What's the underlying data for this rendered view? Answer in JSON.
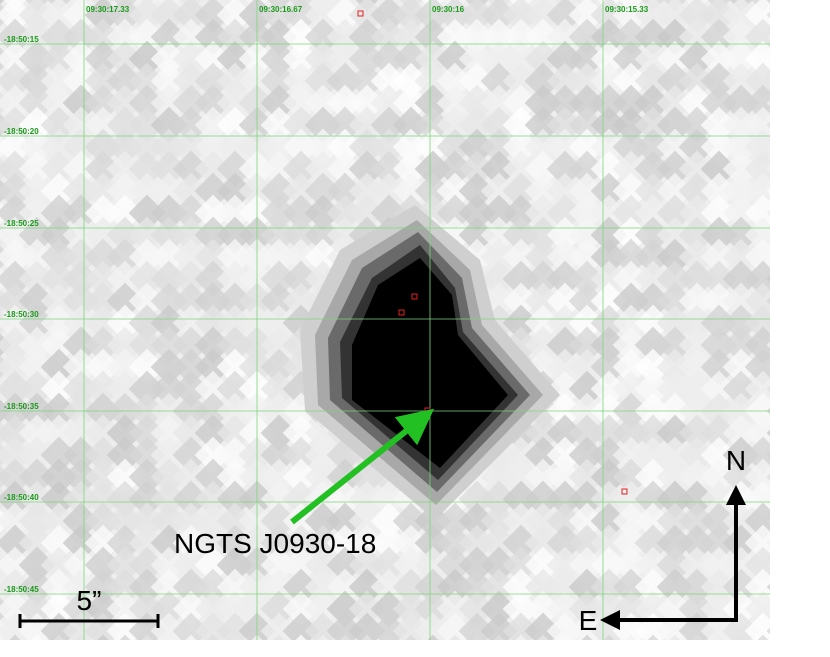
{
  "ra_labels": [
    "09:30:17.33",
    "09:30:16.67",
    "09:30:16",
    "09:30:15.33"
  ],
  "dec_labels": [
    "-18:50:15",
    "-18:50:20",
    "-18:50:25",
    "-18:50:30",
    "-18:50:35",
    "-18:50:40",
    "-18:50:45"
  ],
  "target_label": "NGTS J0930-18",
  "scale_label": "5”",
  "compass": {
    "north": "N",
    "east": "E"
  }
}
